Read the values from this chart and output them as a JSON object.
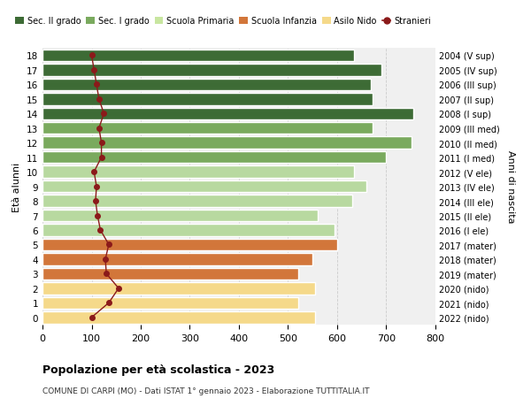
{
  "ages": [
    18,
    17,
    16,
    15,
    14,
    13,
    12,
    11,
    10,
    9,
    8,
    7,
    6,
    5,
    4,
    3,
    2,
    1,
    0
  ],
  "right_labels": [
    "2004 (V sup)",
    "2005 (IV sup)",
    "2006 (III sup)",
    "2007 (II sup)",
    "2008 (I sup)",
    "2009 (III med)",
    "2010 (II med)",
    "2011 (I med)",
    "2012 (V ele)",
    "2013 (IV ele)",
    "2014 (III ele)",
    "2015 (II ele)",
    "2016 (I ele)",
    "2017 (mater)",
    "2018 (mater)",
    "2019 (mater)",
    "2020 (nido)",
    "2021 (nido)",
    "2022 (nido)"
  ],
  "bar_values": [
    635,
    690,
    668,
    672,
    755,
    672,
    752,
    700,
    635,
    660,
    630,
    560,
    595,
    600,
    550,
    520,
    555,
    520,
    555
  ],
  "bar_colors": [
    "#3d6b35",
    "#3d6b35",
    "#3d6b35",
    "#3d6b35",
    "#3d6b35",
    "#7aaa5e",
    "#7aaa5e",
    "#7aaa5e",
    "#b8d9a0",
    "#b8d9a0",
    "#b8d9a0",
    "#b8d9a0",
    "#b8d9a0",
    "#d2763a",
    "#d2763a",
    "#d2763a",
    "#f5d98a",
    "#f5d98a",
    "#f5d98a"
  ],
  "stranieri_values": [
    100,
    105,
    110,
    115,
    125,
    115,
    120,
    120,
    105,
    110,
    108,
    112,
    118,
    135,
    128,
    130,
    155,
    135,
    100
  ],
  "legend_labels": [
    "Sec. II grado",
    "Sec. I grado",
    "Scuola Primaria",
    "Scuola Infanzia",
    "Asilo Nido",
    "Stranieri"
  ],
  "legend_colors": [
    "#3d6b35",
    "#7aaa5e",
    "#c8e6a0",
    "#d2763a",
    "#f5d98a",
    "#8b1a1a"
  ],
  "title": "Popolazione per età scolastica - 2023",
  "subtitle": "COMUNE DI CARPI (MO) - Dati ISTAT 1° gennaio 2023 - Elaborazione TUTTITALIA.IT",
  "ylabel_left": "Età alunni",
  "ylabel_right": "Anni di nascita",
  "xlim": [
    0,
    800
  ],
  "xticks": [
    0,
    100,
    200,
    300,
    400,
    500,
    600,
    700,
    800
  ],
  "bg_color": "#ffffff",
  "bar_bg_color": "#f0f0f0",
  "grid_color": "#cccccc"
}
